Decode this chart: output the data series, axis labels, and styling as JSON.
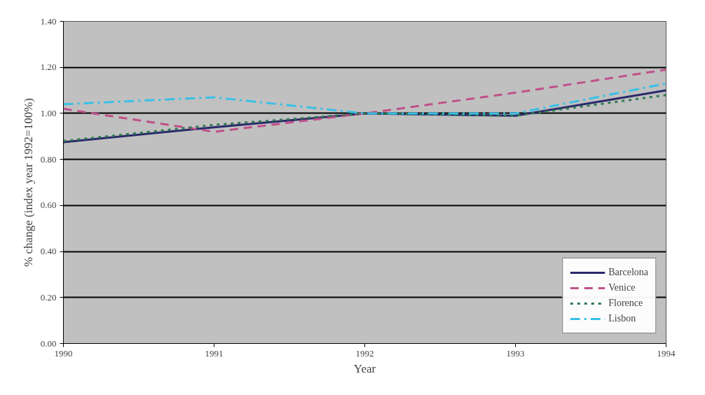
{
  "chart_data": {
    "type": "line",
    "xlabel": "Year",
    "ylabel": "% change (index year 1992=100%)",
    "x": [
      1990,
      1991,
      1992,
      1993,
      1994
    ],
    "series": [
      {
        "name": "Barcelona",
        "color": "#2b2a6b",
        "line_style": "solid",
        "values": [
          0.875,
          0.94,
          1.0,
          0.99,
          1.1
        ]
      },
      {
        "name": "Venice",
        "color": "#c0508a",
        "line_style": "dashed",
        "values": [
          1.02,
          0.92,
          1.0,
          1.09,
          1.19
        ]
      },
      {
        "name": "Florence",
        "color": "#2e7a50",
        "line_style": "dotted",
        "values": [
          0.88,
          0.95,
          1.0,
          0.99,
          1.08
        ]
      },
      {
        "name": "Lisbon",
        "color": "#38c0e6",
        "line_style": "dashdot",
        "values": [
          1.04,
          1.07,
          1.0,
          1.0,
          1.13
        ]
      }
    ],
    "xlim": [
      1990,
      1994
    ],
    "xticks": [
      1990,
      1991,
      1992,
      1993,
      1994
    ],
    "ylim": [
      0,
      1.4
    ],
    "yticks": [
      {
        "value": 0,
        "label": "0.00"
      },
      {
        "value": 0.2,
        "label": "0.20"
      },
      {
        "value": 0.4,
        "label": "0.40"
      },
      {
        "value": 0.6,
        "label": "0.60"
      },
      {
        "value": 0.8,
        "label": "0.80"
      },
      {
        "value": 1.0,
        "label": "1.00"
      },
      {
        "value": 1.2,
        "label": "1.20"
      },
      {
        "value": 1.4,
        "label": "1.40"
      }
    ],
    "grid": "y",
    "legend": "bottom right",
    "marker": "none"
  }
}
